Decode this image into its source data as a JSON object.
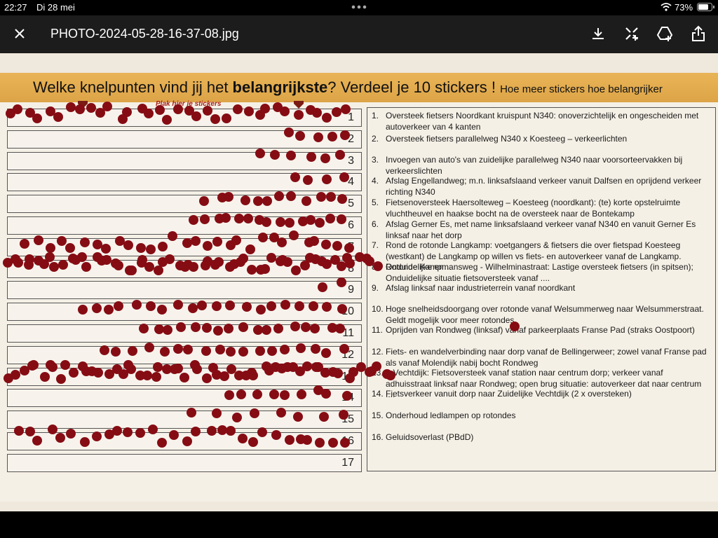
{
  "status": {
    "time": "22:27",
    "date": "Di 28 mei",
    "battery": "73%"
  },
  "toolbar": {
    "filename": "PHOTO-2024-05-28-16-37-08.jpg"
  },
  "poster": {
    "title": [
      "Welke knelpunten vind jij het ",
      "belangrijkste",
      "? Verdeel je 10 stickers !"
    ],
    "subtitle": "Hoe meer stickers hoe belangrijker",
    "sticker_hint": "Plak hier je stickers",
    "rows": [
      "1",
      "2",
      "3",
      "4",
      "5",
      "6",
      "7",
      "8",
      "9",
      "10",
      "11",
      "12",
      "13",
      "14",
      "15",
      "16",
      "17"
    ],
    "items": [
      {
        "number": "1.",
        "text": "Oversteek  fietsers Noordkant kruispunt N340: onoverzichtelijk en ongescheiden met autoverkeer van 4 kanten"
      },
      {
        "number": "2.",
        "text": "Oversteek fietsers parallelweg N340 x Koesteeg – verkeerlichten"
      },
      {
        "number": "3.",
        "text": "Invoegen van auto's van zuidelijke parallelweg N340 naar voorsorteervakken bij verkeerslichten"
      },
      {
        "number": "4.",
        "text": "Afslag Engellandweg; m.n. linksafslaand verkeer vanuit Dalfsen en oprijdend verkeer richting N340"
      },
      {
        "number": "5.",
        "text": "Fietsenoversteek Haersolteweg – Koesteeg (noordkant): (te) korte opstelruimte vluchtheuvel en haakse bocht na de oversteek naar de Bontekamp"
      },
      {
        "number": "6.",
        "text": "Afslag Gerner Es, met name linksafslaand verkeer vanaf N340 en vanuit Gerner Es linksaf naar het dorp"
      },
      {
        "number": "7.",
        "text": "Rond de rotonde Langkamp: voetgangers & fietsers die over fietspad Koesteeg (westkant) de Langkamp op willen vs fiets- en autoverkeer vanaf de Langkamp. Onduidelijke en…"
      },
      {
        "number": "8.",
        "text": "Rotonde Kampmansweg - Wilhelminastraat: Lastige oversteek fietsers (in spitsen); Onduidelijke situatie fietsoversteek vanaf ...."
      },
      {
        "number": "9.",
        "text": "Afslag linksaf naar industrieterrein vanaf noordkant"
      },
      {
        "number": "10.",
        "text": "Hoge snelheidsdoorgang over rotonde vanaf Welsummerweg naar Welsummerstraat. Geldt mogelijk voor meer rotondes"
      },
      {
        "number": "11.",
        "text": "Oprijden van Rondweg (linksaf) vanaf parkeerplaats Franse Pad (straks Oostpoort)"
      },
      {
        "number": "12.",
        "text": "Fiets- en wandelverbinding naar dorp vanaf de Bellingerweer; zowel vanaf Franse pad als vanaf Molendijk nabij bocht Rondweg"
      },
      {
        "number": "13.",
        "text": "e-Vechtdijk: Fietsoversteek vanaf station naar centrum dorp; verkeer vanaf adhuisstraat linksaf naar Rondweg; open brug situatie: autoverkeer dat naar centrum ...."
      },
      {
        "number": "14.",
        "text": "Fietsverkeer vanuit dorp naar Zuidelijke Vechtdijk (2 x oversteken)"
      },
      {
        "number": "15.",
        "text": "Onderhoud ledlampen op rotondes"
      },
      {
        "number": "16.",
        "text": "Geluidsoverlast (PBdD)"
      }
    ]
  }
}
